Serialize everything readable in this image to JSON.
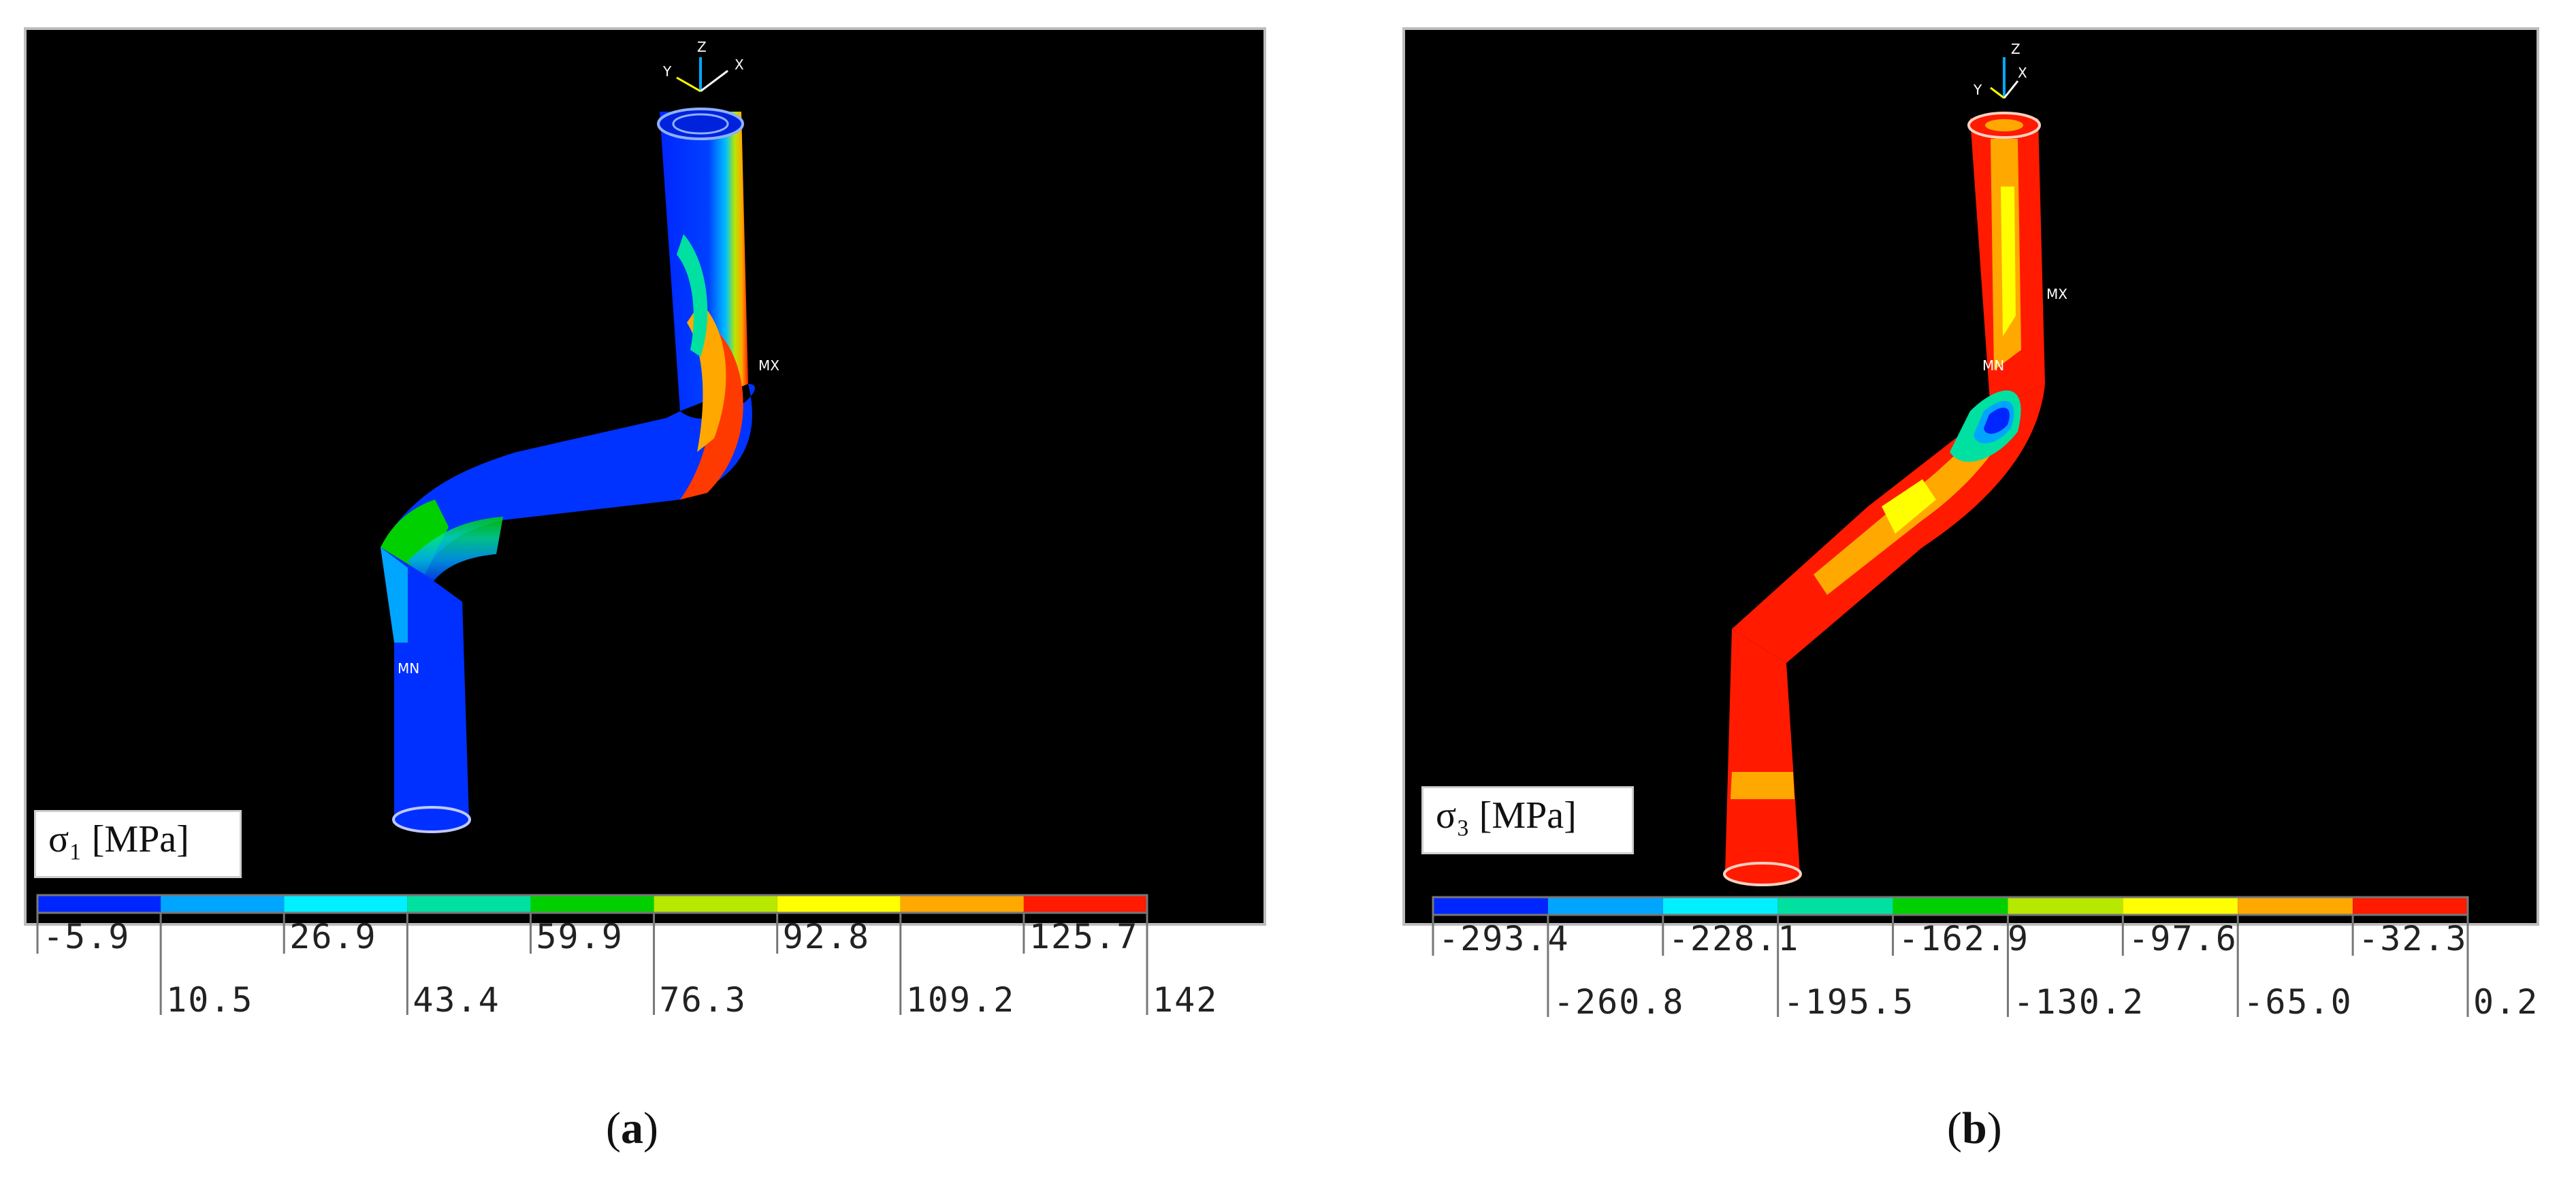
{
  "panels": [
    {
      "id": "a",
      "caption": "a",
      "legend_title": "σ₁ [MPa]",
      "max_marker": "MX",
      "min_marker": "MN",
      "axis_labels": [
        "Y",
        "Z",
        "X"
      ],
      "scale_colors": [
        "#0026ff",
        "#00a5ff",
        "#00f0ff",
        "#00e0a0",
        "#00d000",
        "#b6e800",
        "#ffff00",
        "#ffa800",
        "#ff1a00"
      ],
      "scale_top": [
        "-5.9",
        "26.9",
        "59.9",
        "92.8",
        "125.7"
      ],
      "scale_bottom": [
        "10.5",
        "43.4",
        "76.3",
        "109.2",
        "142"
      ]
    },
    {
      "id": "b",
      "caption": "b",
      "legend_title": "σ₃ [MPa]",
      "max_marker": "MX",
      "min_marker": "MN",
      "axis_labels": [
        "Y",
        "Z",
        "X"
      ],
      "scale_colors": [
        "#0026ff",
        "#00a5ff",
        "#00f0ff",
        "#00e0a0",
        "#00d000",
        "#b6e800",
        "#ffff00",
        "#ffa800",
        "#ff1a00"
      ],
      "scale_top": [
        "-293.4",
        "-228.1",
        "-162.9",
        "-97.6",
        "-32.3"
      ],
      "scale_bottom": [
        "-260.8",
        "-195.5",
        "-130.2",
        "-65.0",
        "0.2"
      ]
    }
  ]
}
